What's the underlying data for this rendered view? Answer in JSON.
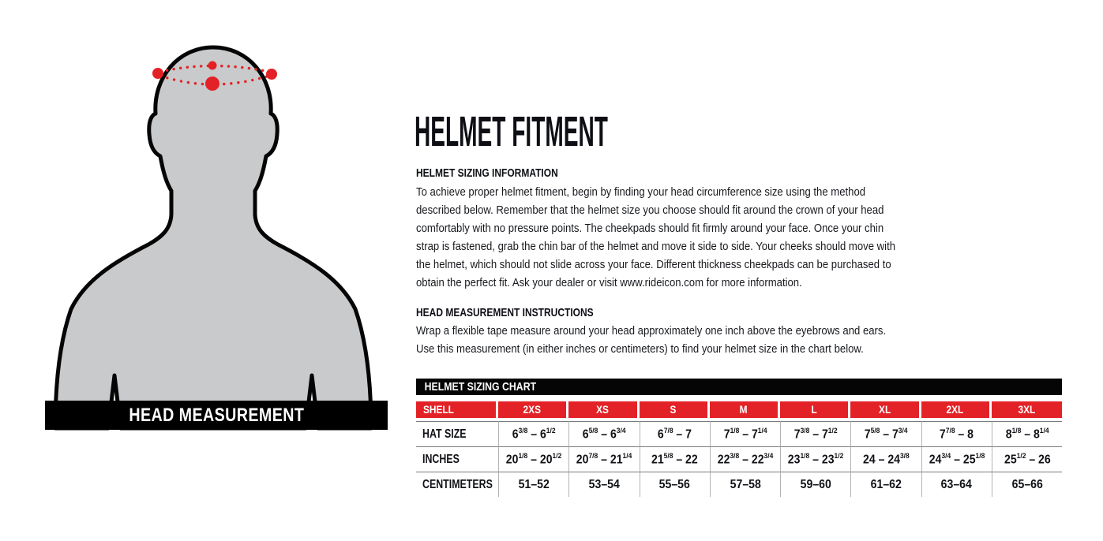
{
  "theme": {
    "accent_color": "#e32227",
    "silhouette_color": "#c9cacb",
    "banner_color": "#000000"
  },
  "figure": {
    "banner_label": "HEAD MEASUREMENT"
  },
  "content": {
    "title": "HELMET FITMENT",
    "sizing_info": {
      "heading": "HELMET SIZING INFORMATION",
      "lines": [
        "To achieve proper helmet fitment, begin by finding your head circumference size using the method",
        "described below. Remember that the helmet size you choose should fit around the crown of your head",
        "comfortably with no pressure points. The cheekpads should fit firmly around your face. Once your chin",
        "strap is fastened, grab the chin bar of the helmet and move it side to side. Your cheeks should move with",
        "the helmet, which should not slide across your face. Different thickness cheekpads can be purchased to",
        "obtain the perfect fit. Ask your dealer or visit www.rideicon.com for more information."
      ]
    },
    "measurement_instructions": {
      "heading": "HEAD MEASUREMENT INSTRUCTIONS",
      "lines": [
        "Wrap a flexible tape measure around your head approximately one inch above the eyebrows and ears.",
        "Use this measurement (in either inches or centimeters) to find your helmet size in the chart below."
      ]
    }
  },
  "chart": {
    "title": "HELMET SIZING CHART",
    "columns": [
      "SHELL",
      "2XS",
      "XS",
      "S",
      "M",
      "L",
      "XL",
      "2XL",
      "3XL"
    ],
    "rows": [
      {
        "label": "HAT SIZE",
        "values": [
          "6 3/8 – 6 1/2",
          "6 5/8 – 6 3/4",
          "6 7/8 – 7",
          "7 1/8 – 7 1/4",
          "7 3/8 – 7 1/2",
          "7 5/8 – 7 3/4",
          "7 7/8 – 8",
          "8 1/8 – 8 1/4"
        ]
      },
      {
        "label": "INCHES",
        "values": [
          "20 1/8 – 20 1/2",
          "20 7/8 – 21 1/4",
          "21 5/8 – 22",
          "22 3/8 – 22 3/4",
          "23 1/8 – 23 1/2",
          "24 – 24 3/8",
          "24 3/4 – 25 1/8",
          "25 1/2 – 26"
        ]
      },
      {
        "label": "CENTIMETERS",
        "values": [
          "51–52",
          "53–54",
          "55–56",
          "57–58",
          "59–60",
          "61–62",
          "63–64",
          "65–66"
        ]
      }
    ]
  }
}
